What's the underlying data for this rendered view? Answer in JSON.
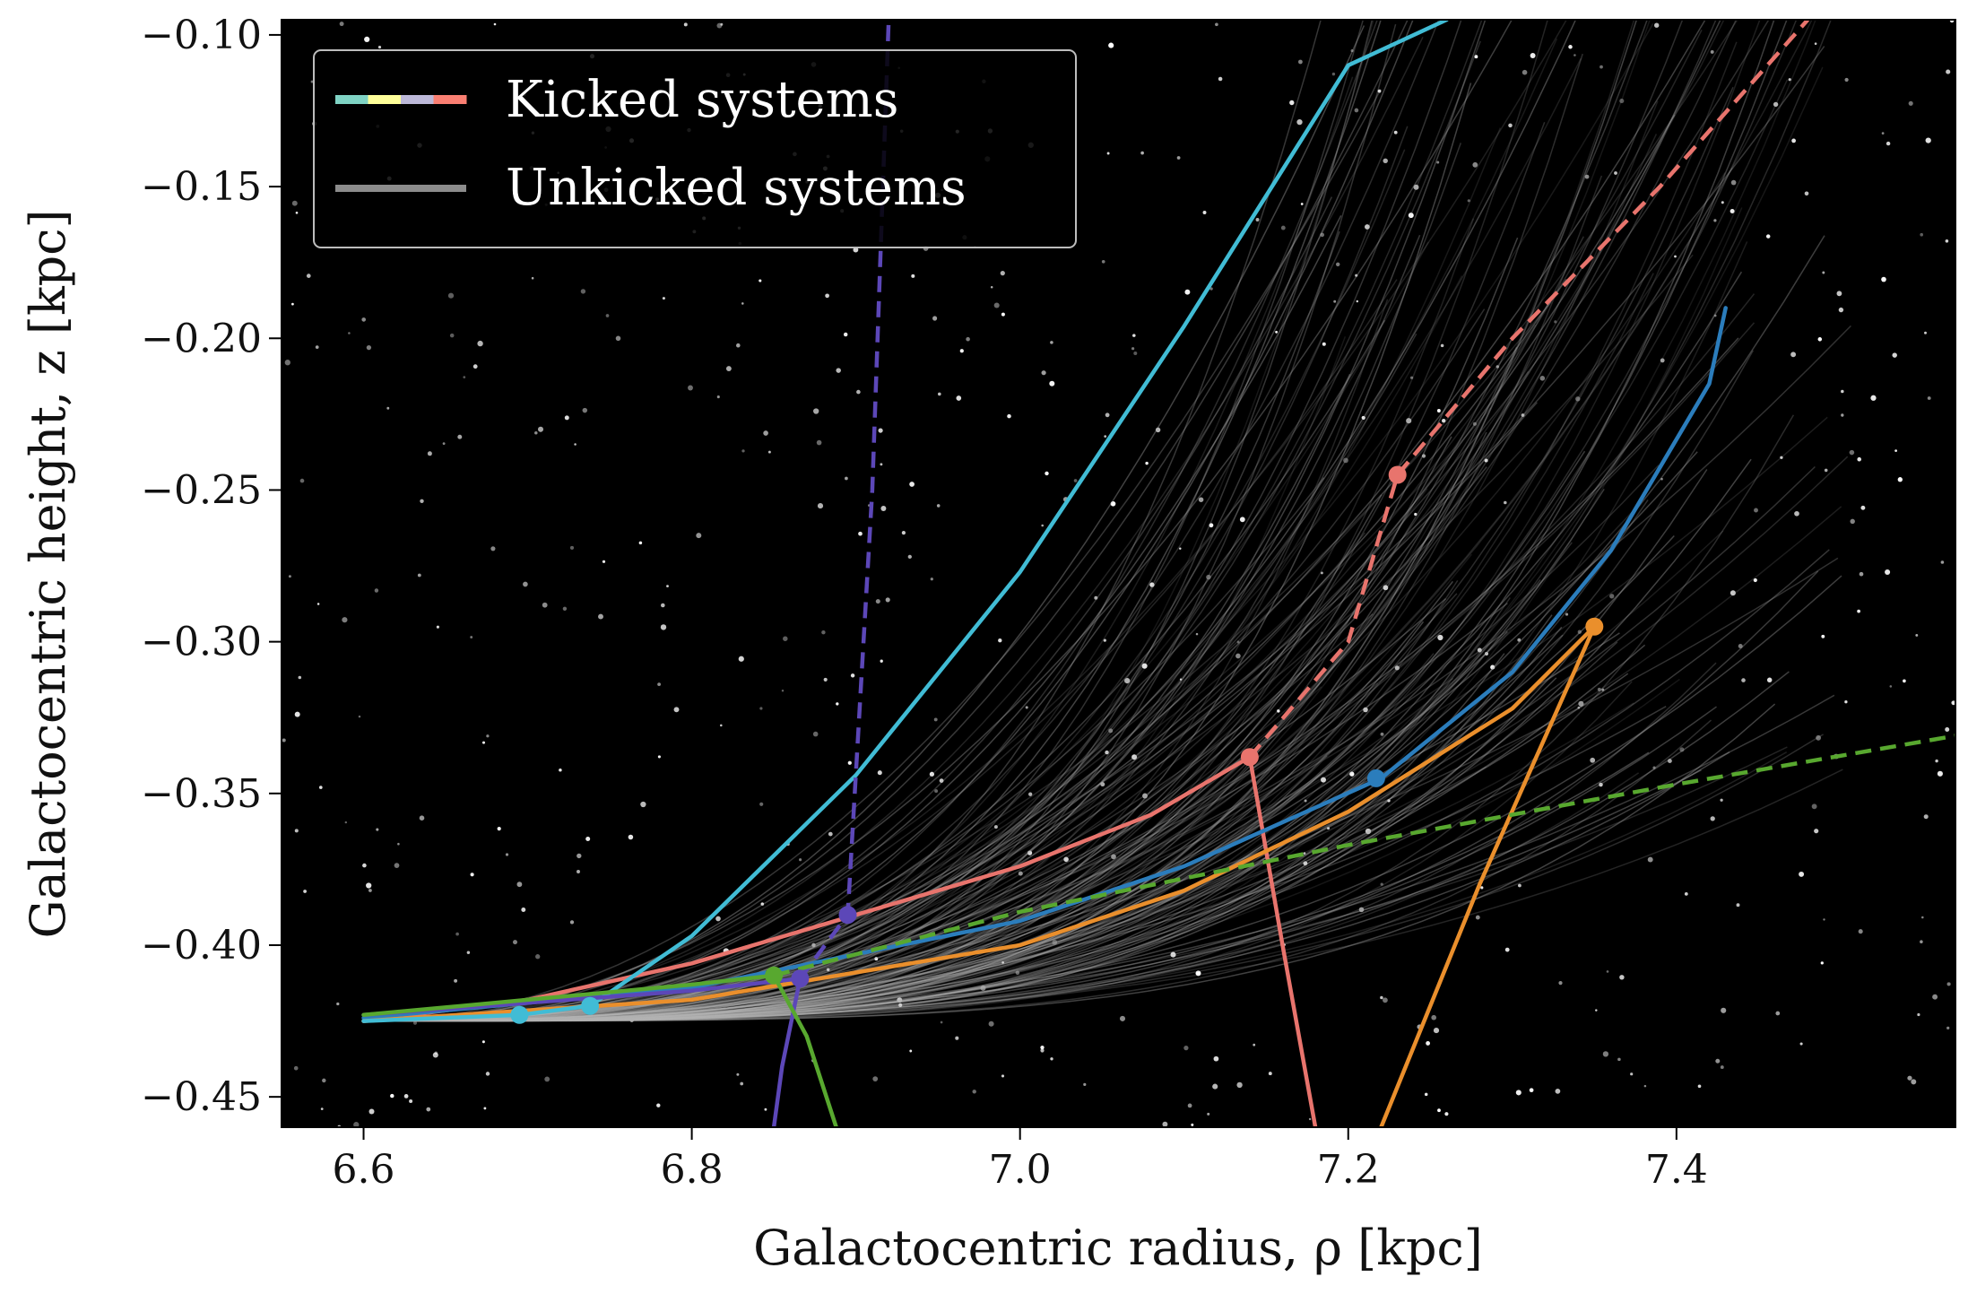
{
  "chart_data": {
    "type": "line",
    "xlabel": "Galactocentric radius, ρ [kpc]",
    "ylabel": "Galactocentric height, z [kpc]",
    "xlim": [
      6.55,
      7.57
    ],
    "ylim": [
      -0.46,
      -0.095
    ],
    "x_ticks": [
      "6.6",
      "6.8",
      "7.0",
      "7.2",
      "7.4"
    ],
    "y_ticks": [
      "−0.10",
      "−0.15",
      "−0.20",
      "−0.25",
      "−0.30",
      "−0.35",
      "−0.40",
      "−0.45"
    ],
    "background": "#000000",
    "grid": false,
    "legend": {
      "position": "top-left",
      "entries": [
        {
          "label": "Kicked systems",
          "colors": [
            "#7fd3c4",
            "#ffff99",
            "#bcb8d8",
            "#fa7f72"
          ]
        },
        {
          "label": "Unkicked systems",
          "colors": [
            "#8c8c8c"
          ]
        }
      ]
    },
    "series": [
      {
        "color": "#e8746d",
        "style": "solid",
        "points": [
          [
            6.6,
            -0.425
          ],
          [
            6.7,
            -0.418
          ],
          [
            6.8,
            -0.406
          ],
          [
            6.9,
            -0.39
          ],
          [
            7.0,
            -0.374
          ],
          [
            7.08,
            -0.357
          ],
          [
            7.14,
            -0.338
          ]
        ]
      },
      {
        "color": "#e8746d",
        "style": "dashed",
        "points": [
          [
            7.14,
            -0.338
          ],
          [
            7.2,
            -0.3
          ],
          [
            7.23,
            -0.245
          ],
          [
            7.3,
            -0.2
          ],
          [
            7.39,
            -0.15
          ],
          [
            7.48,
            -0.095
          ]
        ]
      },
      {
        "color": "#e8746d",
        "style": "solid",
        "points": [
          [
            7.14,
            -0.338
          ],
          [
            7.16,
            -0.4
          ],
          [
            7.18,
            -0.46
          ]
        ]
      },
      {
        "color": "#2b7dbc",
        "style": "solid",
        "points": [
          [
            6.6,
            -0.424
          ],
          [
            6.8,
            -0.414
          ],
          [
            7.0,
            -0.392
          ],
          [
            7.1,
            -0.374
          ],
          [
            7.22,
            -0.345
          ],
          [
            7.3,
            -0.31
          ],
          [
            7.36,
            -0.27
          ],
          [
            7.42,
            -0.215
          ],
          [
            7.43,
            -0.19
          ]
        ]
      },
      {
        "color": "#ea8f2c",
        "style": "solid",
        "points": [
          [
            6.6,
            -0.425
          ],
          [
            6.8,
            -0.418
          ],
          [
            7.0,
            -0.4
          ],
          [
            7.1,
            -0.382
          ],
          [
            7.2,
            -0.356
          ],
          [
            7.3,
            -0.322
          ],
          [
            7.35,
            -0.295
          ]
        ]
      },
      {
        "color": "#ea8f2c",
        "style": "solid",
        "points": [
          [
            7.35,
            -0.295
          ],
          [
            7.28,
            -0.38
          ],
          [
            7.22,
            -0.46
          ]
        ]
      },
      {
        "color": "#41bcd5",
        "style": "solid",
        "points": [
          [
            6.6,
            -0.425
          ],
          [
            6.695,
            -0.423
          ],
          [
            6.738,
            -0.42
          ],
          [
            6.8,
            -0.397
          ],
          [
            6.9,
            -0.344
          ],
          [
            7.0,
            -0.277
          ],
          [
            7.1,
            -0.196
          ],
          [
            7.2,
            -0.11
          ],
          [
            7.26,
            -0.095
          ]
        ]
      },
      {
        "color": "#5c47b8",
        "style": "solid",
        "points": [
          [
            6.6,
            -0.423
          ],
          [
            6.7,
            -0.419
          ],
          [
            6.8,
            -0.415
          ],
          [
            6.866,
            -0.411
          ]
        ]
      },
      {
        "color": "#5c47b8",
        "style": "dashed",
        "points": [
          [
            6.866,
            -0.411
          ],
          [
            6.895,
            -0.39
          ],
          [
            6.91,
            -0.25
          ],
          [
            6.92,
            -0.095
          ]
        ]
      },
      {
        "color": "#5c47b8",
        "style": "solid",
        "points": [
          [
            6.866,
            -0.411
          ],
          [
            6.855,
            -0.44
          ],
          [
            6.85,
            -0.46
          ]
        ]
      },
      {
        "color": "#58a82f",
        "style": "solid",
        "points": [
          [
            6.6,
            -0.423
          ],
          [
            6.7,
            -0.418
          ],
          [
            6.8,
            -0.413
          ],
          [
            6.85,
            -0.41
          ]
        ]
      },
      {
        "color": "#58a82f",
        "style": "dashed",
        "points": [
          [
            6.85,
            -0.41
          ],
          [
            7.0,
            -0.389
          ],
          [
            7.2,
            -0.367
          ],
          [
            7.4,
            -0.347
          ],
          [
            7.57,
            -0.331
          ]
        ]
      },
      {
        "color": "#58a82f",
        "style": "solid",
        "points": [
          [
            6.85,
            -0.41
          ],
          [
            6.87,
            -0.43
          ],
          [
            6.888,
            -0.46
          ]
        ]
      }
    ],
    "markers": [
      {
        "color": "#e8746d",
        "points": [
          [
            7.14,
            -0.338
          ],
          [
            7.23,
            -0.245
          ]
        ]
      },
      {
        "color": "#2b7dbc",
        "points": [
          [
            7.217,
            -0.345
          ]
        ]
      },
      {
        "color": "#ea8f2c",
        "points": [
          [
            7.35,
            -0.295
          ]
        ]
      },
      {
        "color": "#41bcd5",
        "points": [
          [
            6.695,
            -0.423
          ],
          [
            6.738,
            -0.42
          ]
        ]
      },
      {
        "color": "#5c47b8",
        "points": [
          [
            6.866,
            -0.411
          ],
          [
            6.895,
            -0.39
          ]
        ]
      },
      {
        "color": "#58a82f",
        "points": [
          [
            6.85,
            -0.41
          ]
        ]
      }
    ]
  }
}
